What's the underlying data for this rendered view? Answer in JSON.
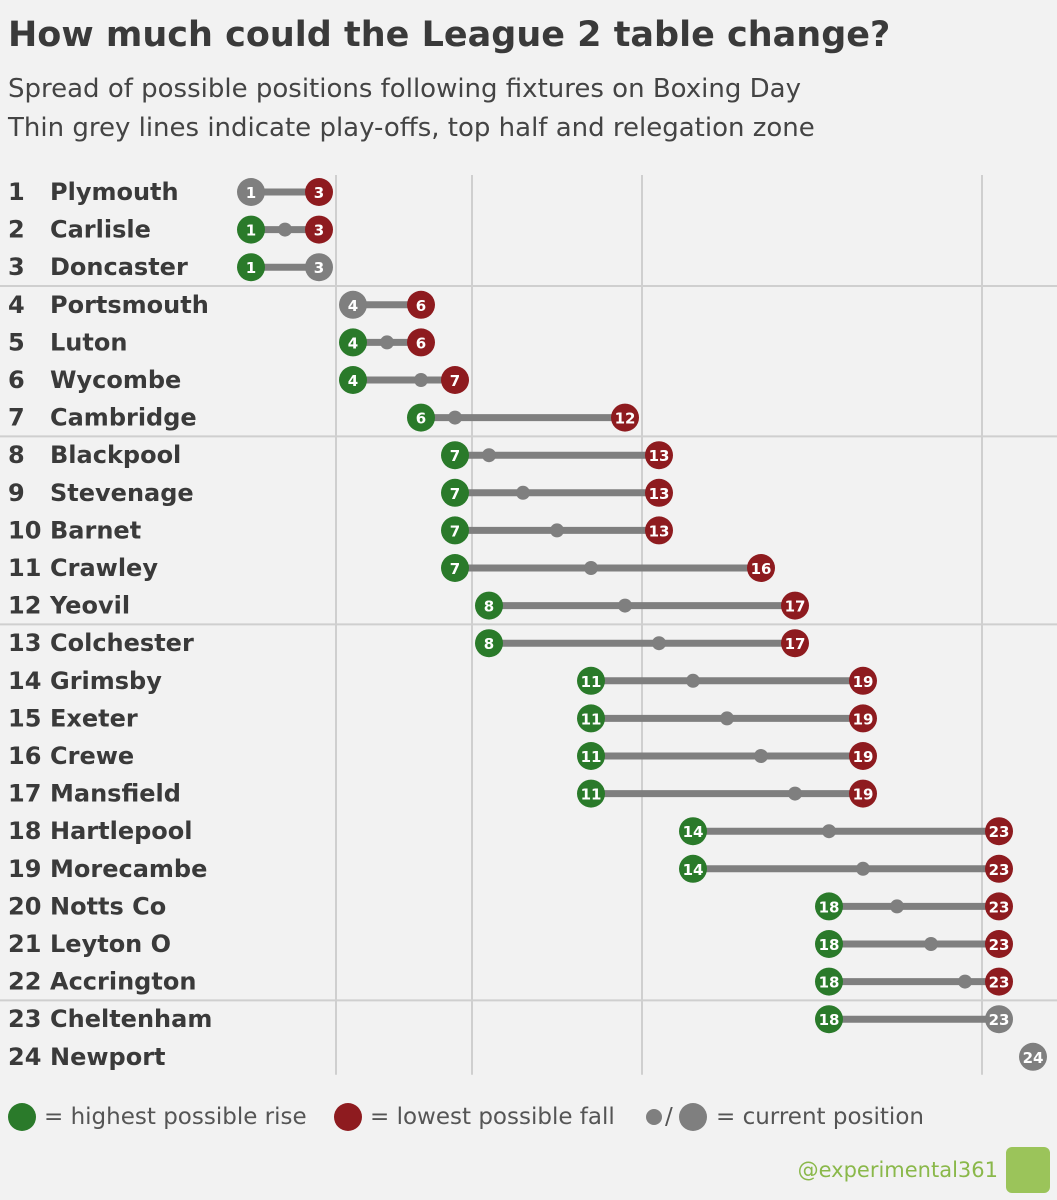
{
  "chart_data": {
    "type": "dumbbell",
    "title": "How much could the League 2 table change?",
    "subtitle": [
      "Spread of possible positions following fixtures on Boxing Day",
      "Thin grey lines indicate play-offs, top half and relegation zone"
    ],
    "xlim": [
      1,
      24
    ],
    "xticks": [
      3.5,
      7.5,
      12.5,
      22.5
    ],
    "colors": {
      "rise": "#2a7a2a",
      "fall": "#8e1b1f",
      "current": "#7f7f7f"
    },
    "teams": [
      {
        "position": 1,
        "name": "Plymouth",
        "best": 1,
        "worst": 3
      },
      {
        "position": 2,
        "name": "Carlisle",
        "best": 1,
        "worst": 3
      },
      {
        "position": 3,
        "name": "Doncaster",
        "best": 1,
        "worst": 3
      },
      {
        "position": 4,
        "name": "Portsmouth",
        "best": 4,
        "worst": 6
      },
      {
        "position": 5,
        "name": "Luton",
        "best": 4,
        "worst": 6
      },
      {
        "position": 6,
        "name": "Wycombe",
        "best": 4,
        "worst": 7
      },
      {
        "position": 7,
        "name": "Cambridge",
        "best": 6,
        "worst": 12
      },
      {
        "position": 8,
        "name": "Blackpool",
        "best": 7,
        "worst": 13
      },
      {
        "position": 9,
        "name": "Stevenage",
        "best": 7,
        "worst": 13
      },
      {
        "position": 10,
        "name": "Barnet",
        "best": 7,
        "worst": 13
      },
      {
        "position": 11,
        "name": "Crawley",
        "best": 7,
        "worst": 16
      },
      {
        "position": 12,
        "name": "Yeovil",
        "best": 8,
        "worst": 17
      },
      {
        "position": 13,
        "name": "Colchester",
        "best": 8,
        "worst": 17
      },
      {
        "position": 14,
        "name": "Grimsby",
        "best": 11,
        "worst": 19
      },
      {
        "position": 15,
        "name": "Exeter",
        "best": 11,
        "worst": 19
      },
      {
        "position": 16,
        "name": "Crewe",
        "best": 11,
        "worst": 19
      },
      {
        "position": 17,
        "name": "Mansfield",
        "best": 11,
        "worst": 19
      },
      {
        "position": 18,
        "name": "Hartlepool",
        "best": 14,
        "worst": 23
      },
      {
        "position": 19,
        "name": "Morecambe",
        "best": 14,
        "worst": 23
      },
      {
        "position": 20,
        "name": "Notts Co",
        "best": 18,
        "worst": 23
      },
      {
        "position": 21,
        "name": "Leyton O",
        "best": 18,
        "worst": 23
      },
      {
        "position": 22,
        "name": "Accrington",
        "best": 18,
        "worst": 23
      },
      {
        "position": 23,
        "name": "Cheltenham",
        "best": 18,
        "worst": 23
      },
      {
        "position": 24,
        "name": "Newport",
        "best": 24,
        "worst": 24
      }
    ],
    "legend": {
      "rise": "= highest possible rise",
      "fall": "= lowest possible fall",
      "sep": "/",
      "current": "= current position"
    },
    "source": "@experimental361"
  }
}
